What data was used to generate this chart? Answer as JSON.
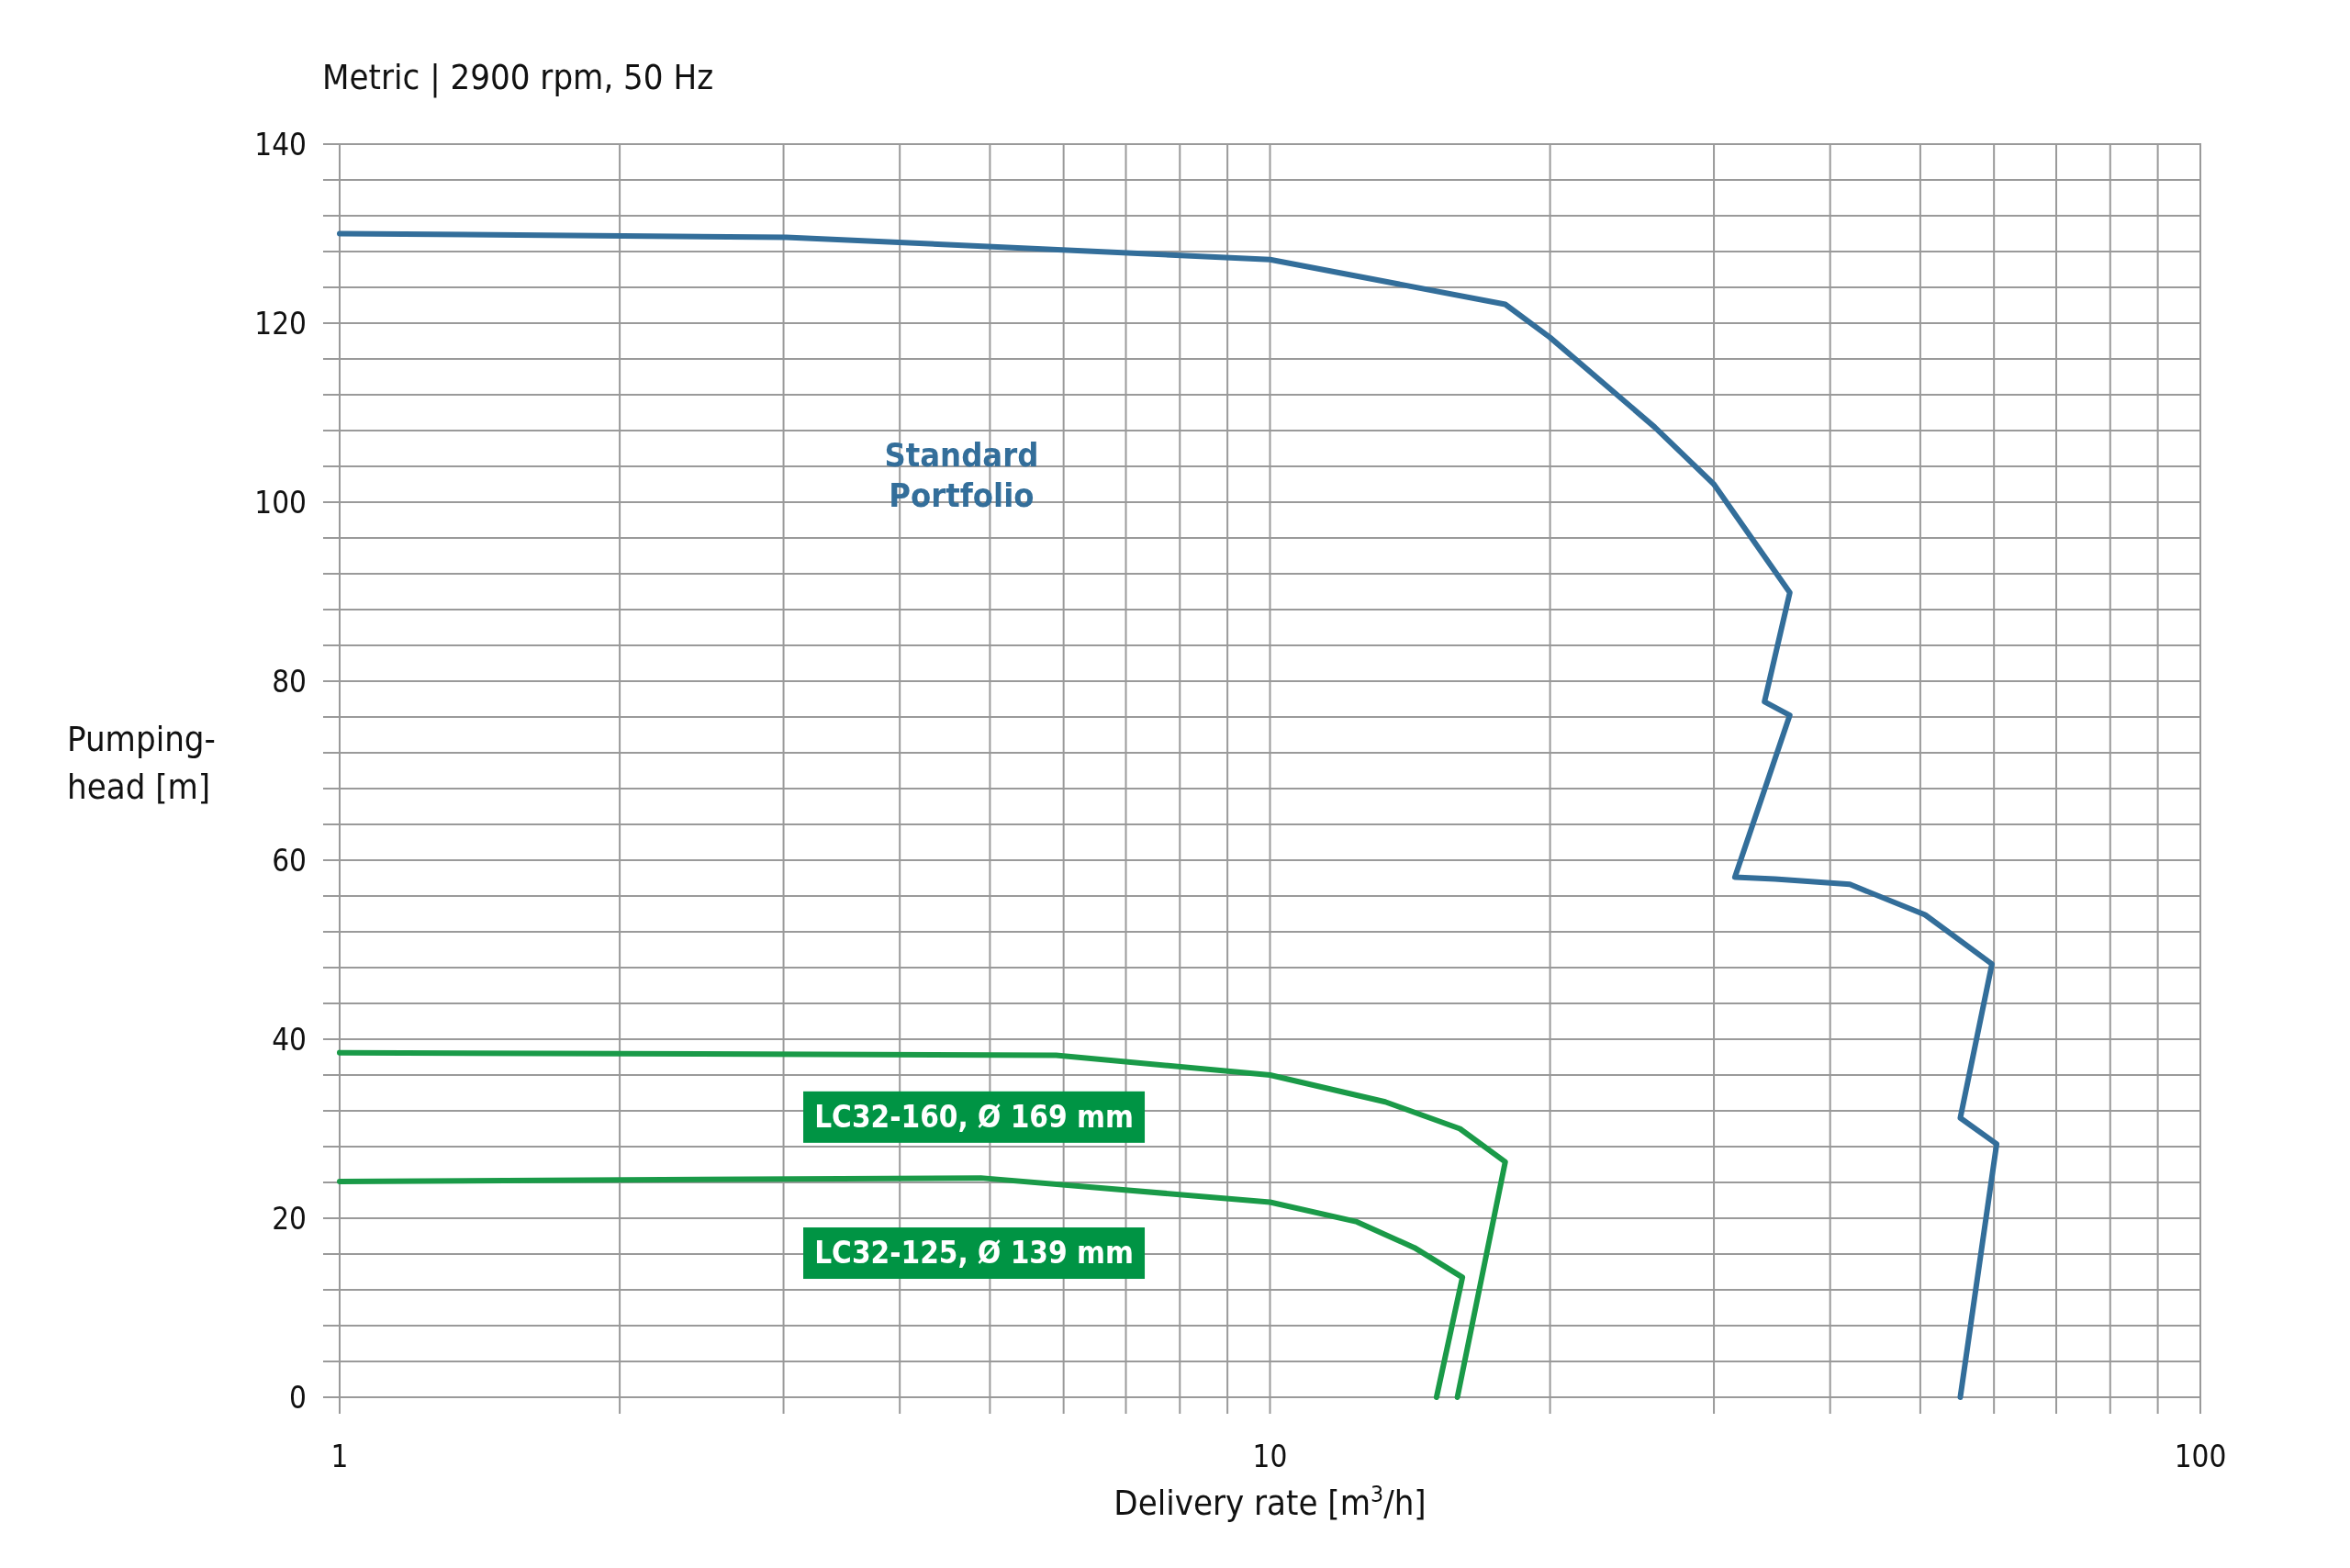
{
  "chart_data": {
    "type": "line",
    "title": "Metric | 2900 rpm, 50 Hz",
    "xlabel": "Delivery rate [m$^{3}$/h]",
    "ylabel": "Pumping-head [m]",
    "log": "x",
    "grid": true,
    "legend": false,
    "marker": "none",
    "line_style": "solid",
    "xlim": [
      1,
      100
    ],
    "ylim": [
      0,
      140
    ],
    "xticks": [
      1,
      {
        "value": 2,
        "label": null
      },
      {
        "value": 3,
        "label": null
      },
      {
        "value": 4,
        "label": null
      },
      {
        "value": 5,
        "label": null
      },
      {
        "value": 6,
        "label": null
      },
      {
        "value": 7,
        "label": null
      },
      {
        "value": 8,
        "label": null
      },
      {
        "value": 9,
        "label": null
      },
      10,
      {
        "value": 20,
        "label": null
      },
      {
        "value": 30,
        "label": null
      },
      {
        "value": 40,
        "label": null
      },
      {
        "value": 50,
        "label": null
      },
      {
        "value": 60,
        "label": null
      },
      {
        "value": 70,
        "label": null
      },
      {
        "value": 80,
        "label": null
      },
      {
        "value": 90,
        "label": null
      },
      100
    ],
    "yticks": [
      0,
      {
        "value": 4,
        "label": null
      },
      {
        "value": 8,
        "label": null
      },
      {
        "value": 12,
        "label": null
      },
      {
        "value": 16,
        "label": null
      },
      20,
      {
        "value": 24,
        "label": null
      },
      {
        "value": 28,
        "label": null
      },
      {
        "value": 32,
        "label": null
      },
      {
        "value": 36,
        "label": null
      },
      40,
      {
        "value": 44,
        "label": null
      },
      {
        "value": 48,
        "label": null
      },
      {
        "value": 52,
        "label": null
      },
      {
        "value": 56,
        "label": null
      },
      60,
      {
        "value": 64,
        "label": null
      },
      {
        "value": 68,
        "label": null
      },
      {
        "value": 72,
        "label": null
      },
      {
        "value": 76,
        "label": null
      },
      80,
      {
        "value": 84,
        "label": null
      },
      {
        "value": 88,
        "label": null
      },
      {
        "value": 92,
        "label": null
      },
      {
        "value": 96,
        "label": null
      },
      100,
      {
        "value": 104,
        "label": null
      },
      {
        "value": 108,
        "label": null
      },
      {
        "value": 112,
        "label": null
      },
      {
        "value": 116,
        "label": null
      },
      120,
      {
        "value": 124,
        "label": null
      },
      {
        "value": 128,
        "label": null
      },
      {
        "value": 132,
        "label": null
      },
      {
        "value": 136,
        "label": null
      },
      140
    ],
    "series": [
      {
        "name": "Standard Portfolio",
        "color": "#336e9a",
        "x": [
          1,
          3.02,
          10,
          17.9,
          20,
          25.9,
          30,
          36.2,
          34,
          36.2,
          31.6,
          34.9,
          42,
          50.6,
          59.7,
          55.2,
          60.4,
          55.2
        ],
        "values": [
          130,
          129.6,
          127.1,
          122.1,
          118.4,
          108.4,
          102,
          89.9,
          77.7,
          76.2,
          58.1,
          57.9,
          57.3,
          53.9,
          48.4,
          31.2,
          28.3,
          0
        ]
      },
      {
        "name": "LC32-160, Ø 169 mm",
        "color": "#1a9a48",
        "x": [
          1,
          5.89,
          10,
          13.3,
          16,
          17.9,
          15.9
        ],
        "values": [
          38.5,
          38.2,
          36,
          33,
          30,
          26.3,
          0
        ]
      },
      {
        "name": "LC32-125, Ø 139 mm",
        "color": "#1a9a48",
        "x": [
          1,
          4.89,
          10,
          12.4,
          14.3,
          16.1,
          15.1
        ],
        "values": [
          24.1,
          24.5,
          21.8,
          19.6,
          16.7,
          13.4,
          0
        ]
      }
    ]
  }
}
